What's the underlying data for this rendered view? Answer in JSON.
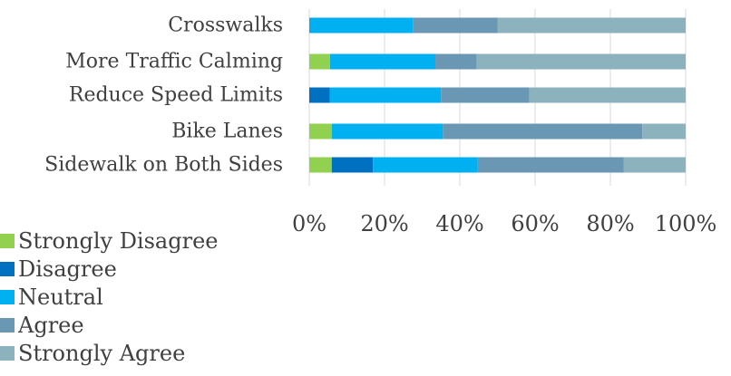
{
  "chart_data": {
    "type": "bar",
    "orientation": "horizontal",
    "stacked": "percent",
    "categories": [
      "Crosswalks",
      "More Traffic Calming",
      "Reduce Speed Limits",
      "Bike Lanes",
      "Sidewalk on Both Sides"
    ],
    "series": [
      {
        "name": "Strongly Disagree",
        "color": "#92d050",
        "values": [
          0,
          5.5,
          0,
          6,
          6
        ]
      },
      {
        "name": "Disagree",
        "color": "#0070c0",
        "values": [
          0,
          0,
          5.5,
          0,
          11
        ]
      },
      {
        "name": "Neutral",
        "color": "#00b0f0",
        "values": [
          27.5,
          28,
          29.5,
          29.5,
          28
        ]
      },
      {
        "name": "Agree",
        "color": "#6a98b4",
        "values": [
          22.5,
          11,
          23.5,
          53,
          39
        ]
      },
      {
        "name": "Strongly Agree",
        "color": "#8cb2be",
        "values": [
          50,
          55.5,
          41.5,
          11.5,
          16.5
        ]
      }
    ],
    "xaxis": {
      "ticks": [
        "0%",
        "20%",
        "40%",
        "60%",
        "80%",
        "100%"
      ],
      "range": [
        0,
        100
      ]
    },
    "grid": true,
    "legend_position": "bottom-left",
    "title": "",
    "xlabel": "",
    "ylabel": ""
  }
}
